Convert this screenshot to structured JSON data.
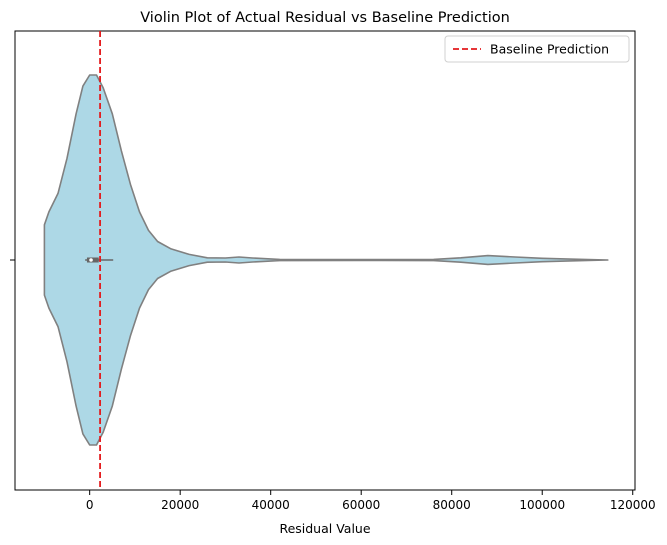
{
  "chart_data": {
    "type": "violin",
    "title": "Violin Plot of Actual Residual vs Baseline Prediction",
    "xlabel": "Residual Value",
    "ylabel": "",
    "xlim": [
      -16500,
      120500
    ],
    "xticks": [
      0,
      20000,
      40000,
      60000,
      80000,
      100000,
      120000
    ],
    "xtick_labels": [
      "0",
      "20000",
      "40000",
      "60000",
      "80000",
      "100000",
      "120000"
    ],
    "grid": false,
    "legend_position": "top-right",
    "legend": [
      {
        "label": "Baseline Prediction",
        "style": "dashed",
        "color": "#e31a1c"
      }
    ],
    "baseline_prediction": 2300,
    "violin": {
      "fill_color": "#add8e6",
      "edge_color": "#808080",
      "density_profile": [
        {
          "x": -10000,
          "half_width": 0.19
        },
        {
          "x": -9000,
          "half_width": 0.26
        },
        {
          "x": -7000,
          "half_width": 0.36
        },
        {
          "x": -5000,
          "half_width": 0.55
        },
        {
          "x": -3000,
          "half_width": 0.79
        },
        {
          "x": -1500,
          "half_width": 0.94
        },
        {
          "x": 0,
          "half_width": 1.0
        },
        {
          "x": 1500,
          "half_width": 1.0
        },
        {
          "x": 3000,
          "half_width": 0.93
        },
        {
          "x": 5000,
          "half_width": 0.79
        },
        {
          "x": 7000,
          "half_width": 0.59
        },
        {
          "x": 9000,
          "half_width": 0.41
        },
        {
          "x": 11000,
          "half_width": 0.26
        },
        {
          "x": 13000,
          "half_width": 0.16
        },
        {
          "x": 15000,
          "half_width": 0.1
        },
        {
          "x": 18000,
          "half_width": 0.06
        },
        {
          "x": 22000,
          "half_width": 0.03
        },
        {
          "x": 26000,
          "half_width": 0.012
        },
        {
          "x": 30000,
          "half_width": 0.011
        },
        {
          "x": 33000,
          "half_width": 0.016
        },
        {
          "x": 36000,
          "half_width": 0.011
        },
        {
          "x": 42000,
          "half_width": 0.003
        },
        {
          "x": 60000,
          "half_width": 0.002
        },
        {
          "x": 76000,
          "half_width": 0.003
        },
        {
          "x": 82000,
          "half_width": 0.012
        },
        {
          "x": 88000,
          "half_width": 0.024
        },
        {
          "x": 94000,
          "half_width": 0.016
        },
        {
          "x": 100000,
          "half_width": 0.009
        },
        {
          "x": 106000,
          "half_width": 0.005
        },
        {
          "x": 114500,
          "half_width": 0.0
        }
      ],
      "box": {
        "q1": -600,
        "median": 300,
        "q3": 2000,
        "whisker_low": -1000,
        "whisker_high": 5200
      }
    }
  }
}
